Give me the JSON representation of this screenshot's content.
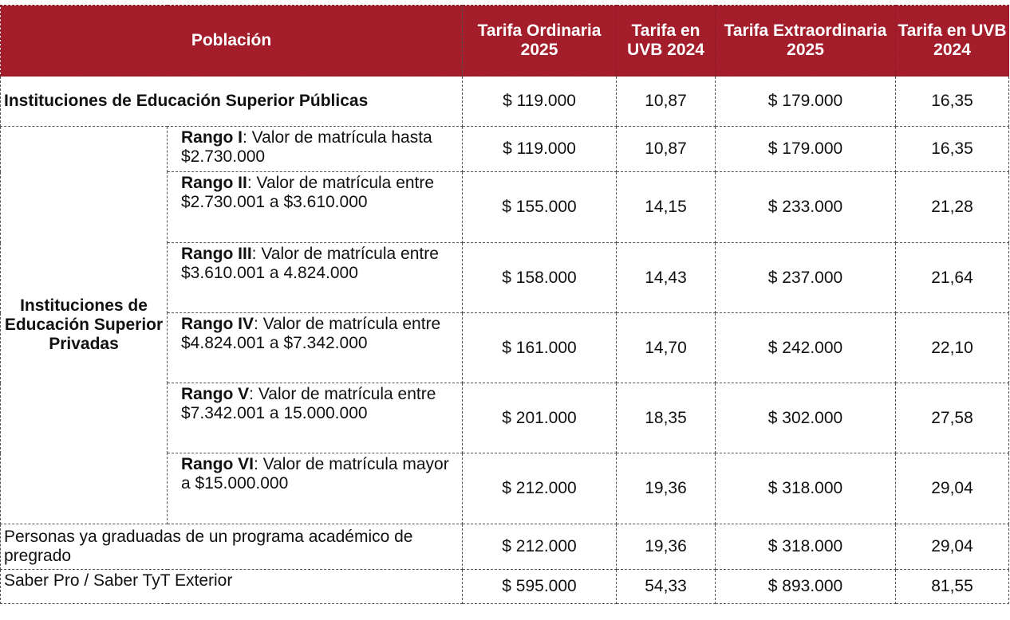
{
  "header": {
    "poblacion": "Población",
    "tarifa_ordinaria": "Tarifa Ordinaria 2025",
    "tarifa_uvb_1": "Tarifa en UVB 2024",
    "tarifa_extraordinaria": "Tarifa Extraordinaria 2025",
    "tarifa_uvb_2": "Tarifa en UVB 2024"
  },
  "rows": {
    "publicas": {
      "label": "Instituciones de Educación Superior Públicas",
      "ordinaria": "$ 119.000",
      "uvb_ord": "10,87",
      "extraordinaria": "$ 179.000",
      "uvb_ext": "16,35"
    },
    "privadas_label": "Instituciones de Educación Superior Privadas",
    "rangos": [
      {
        "name": "Rango I",
        "desc": ": Valor de matrícula hasta $2.730.000",
        "ordinaria": "$ 119.000",
        "uvb_ord": "10,87",
        "extraordinaria": "$ 179.000",
        "uvb_ext": "16,35"
      },
      {
        "name": "Rango II",
        "desc": ": Valor de matrícula entre $2.730.001 a $3.610.000",
        "ordinaria": "$ 155.000",
        "uvb_ord": "14,15",
        "extraordinaria": "$ 233.000",
        "uvb_ext": "21,28"
      },
      {
        "name": "Rango III",
        "desc": ": Valor de matrícula entre $3.610.001 a 4.824.000",
        "ordinaria": "$ 158.000",
        "uvb_ord": "14,43",
        "extraordinaria": "$ 237.000",
        "uvb_ext": "21,64"
      },
      {
        "name": "Rango IV",
        "desc": ": Valor de matrícula entre $4.824.001 a $7.342.000",
        "ordinaria": "$ 161.000",
        "uvb_ord": "14,70",
        "extraordinaria": "$ 242.000",
        "uvb_ext": "22,10"
      },
      {
        "name": "Rango V",
        "desc": ": Valor de matrícula entre $7.342.001 a 15.000.000",
        "ordinaria": "$ 201.000",
        "uvb_ord": "18,35",
        "extraordinaria": "$ 302.000",
        "uvb_ext": "27,58"
      },
      {
        "name": "Rango VI",
        "desc": ": Valor de matrícula mayor a $15.000.000",
        "ordinaria": "$ 212.000",
        "uvb_ord": "19,36",
        "extraordinaria": "$ 318.000",
        "uvb_ext": "29,04"
      }
    ],
    "graduados": {
      "label": "Personas ya graduadas de un programa académico de pregrado",
      "ordinaria": "$ 212.000",
      "uvb_ord": "19,36",
      "extraordinaria": "$ 318.000",
      "uvb_ext": "29,04"
    },
    "exterior": {
      "label": "Saber Pro / Saber TyT Exterior",
      "ordinaria": "$ 595.000",
      "uvb_ord": "54,33",
      "extraordinaria": "$ 893.000",
      "uvb_ext": "81,55"
    }
  },
  "colors": {
    "header_bg": "#A31D2A",
    "header_text": "#ffffff",
    "border": "#555555"
  }
}
